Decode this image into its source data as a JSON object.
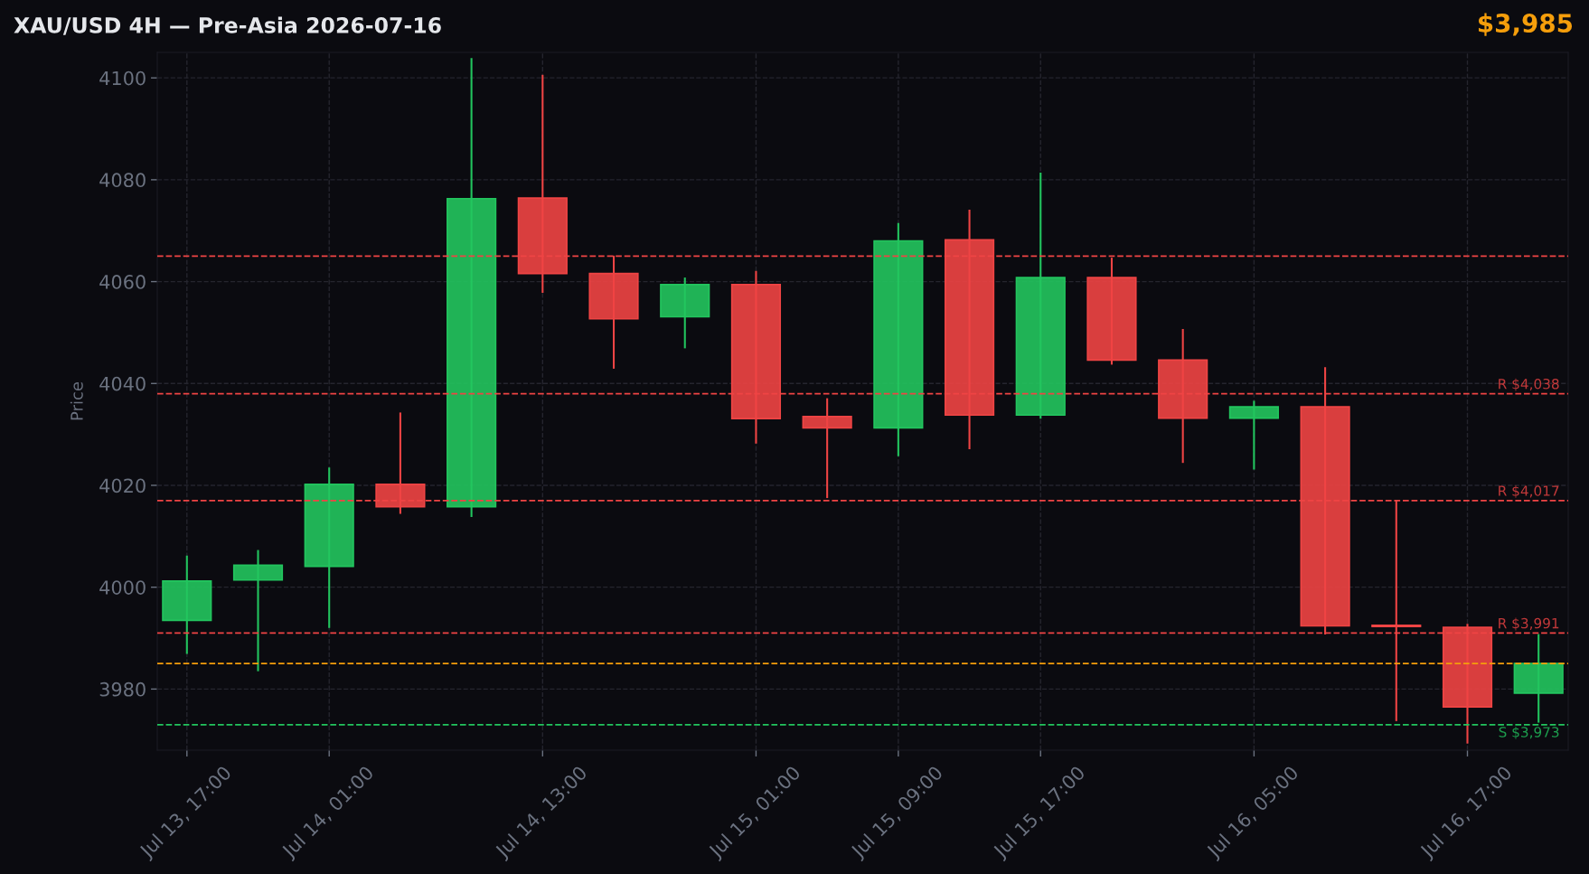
{
  "chart_data": {
    "type": "candlestick",
    "title": "XAU/USD 4H — Pre-Asia 2026-07-16",
    "ylabel": "Price",
    "x": [
      "2026-07-13T17:00",
      "2026-07-13T21:00",
      "2026-07-14T01:00",
      "2026-07-14T05:00",
      "2026-07-14T09:00",
      "2026-07-14T13:00",
      "2026-07-14T17:00",
      "2026-07-14T21:00",
      "2026-07-15T01:00",
      "2026-07-15T05:00",
      "2026-07-15T09:00",
      "2026-07-15T13:00",
      "2026-07-15T17:00",
      "2026-07-15T21:00",
      "2026-07-16T01:00",
      "2026-07-16T05:00",
      "2026-07-16T09:00",
      "2026-07-16T13:00",
      "2026-07-16T17:00",
      "2026-07-16T21:00"
    ],
    "ohlc": [
      [
        3993.5,
        4006.2,
        3986.9,
        4001.2
      ],
      [
        4001.4,
        4007.3,
        3983.5,
        4004.3
      ],
      [
        4004.1,
        4023.5,
        3992.0,
        4020.2
      ],
      [
        4020.2,
        4034.3,
        4014.4,
        4015.8
      ],
      [
        4015.8,
        4103.9,
        4013.8,
        4076.3
      ],
      [
        4076.4,
        4100.6,
        4057.8,
        4061.6
      ],
      [
        4061.6,
        4065.1,
        4042.9,
        4052.7
      ],
      [
        4053.1,
        4060.8,
        4046.9,
        4059.4
      ],
      [
        4059.4,
        4062.1,
        4028.2,
        4033.1
      ],
      [
        4033.5,
        4037.1,
        4017.5,
        4031.3
      ],
      [
        4031.3,
        4071.5,
        4025.7,
        4068.0
      ],
      [
        4068.2,
        4074.1,
        4027.1,
        4033.8
      ],
      [
        4033.8,
        4081.4,
        4033.1,
        4060.8
      ],
      [
        4060.8,
        4064.7,
        4043.7,
        4044.6
      ],
      [
        4044.6,
        4050.7,
        4024.4,
        4033.2
      ],
      [
        4033.2,
        4036.6,
        4023.1,
        4035.4
      ],
      [
        4035.4,
        4043.2,
        3990.7,
        3992.4
      ],
      [
        3992.5,
        4017.0,
        3973.7,
        3992.3
      ],
      [
        3992.1,
        3992.8,
        3969.3,
        3976.5
      ],
      [
        3979.2,
        3990.8,
        3973.4,
        3985
      ]
    ],
    "colors": [
      "#22c55e",
      "#22c55e",
      "#22c55e",
      "#ef4444",
      "#22c55e",
      "#ef4444",
      "#ef4444",
      "#22c55e",
      "#ef4444",
      "#ef4444",
      "#22c55e",
      "#ef4444",
      "#22c55e",
      "#ef4444",
      "#ef4444",
      "#22c55e",
      "#ef4444",
      "#ef4444",
      "#ef4444",
      "#22c55e"
    ],
    "xlim": [
      "2026-07-13T15:20",
      "2026-07-16T22:40"
    ],
    "xticks": [
      {
        "value": "2026-07-13T17:00",
        "label": "Jul 13, 17:00"
      },
      {
        "value": "2026-07-14T01:00",
        "label": "Jul 14, 01:00"
      },
      {
        "value": "2026-07-14T13:00",
        "label": "Jul 14, 13:00"
      },
      {
        "value": "2026-07-15T01:00",
        "label": "Jul 15, 01:00"
      },
      {
        "value": "2026-07-15T09:00",
        "label": "Jul 15, 09:00"
      },
      {
        "value": "2026-07-15T17:00",
        "label": "Jul 15, 17:00"
      },
      {
        "value": "2026-07-16T05:00",
        "label": "Jul 16, 05:00"
      },
      {
        "value": "2026-07-16T17:00",
        "label": "Jul 16, 17:00"
      }
    ],
    "ylim": [
      3968,
      4105
    ],
    "yticks": [
      3980,
      4000,
      4020,
      4040,
      4060,
      4080,
      4100
    ],
    "grid": true,
    "ref_lines": [
      {
        "axis": "y",
        "value": 4065,
        "color": "#ef4444",
        "line_style": "dashed"
      },
      {
        "axis": "y",
        "value": 4038,
        "label": "R $4,038",
        "color": "#ef4444",
        "line_style": "dashed"
      },
      {
        "axis": "y",
        "value": 4017,
        "label": "R $4,017",
        "color": "#ef4444",
        "line_style": "dashed"
      },
      {
        "axis": "y",
        "value": 3991,
        "label": "R $3,991",
        "color": "#ef4444",
        "line_style": "dashed"
      },
      {
        "axis": "y",
        "value": 3985,
        "color": "#f59e0b",
        "line_style": "dashed"
      },
      {
        "axis": "y",
        "value": 3973,
        "label": "S $3,973",
        "color": "#22c55e",
        "line_style": "dashed"
      }
    ],
    "annotations": [
      "$3,985"
    ]
  }
}
